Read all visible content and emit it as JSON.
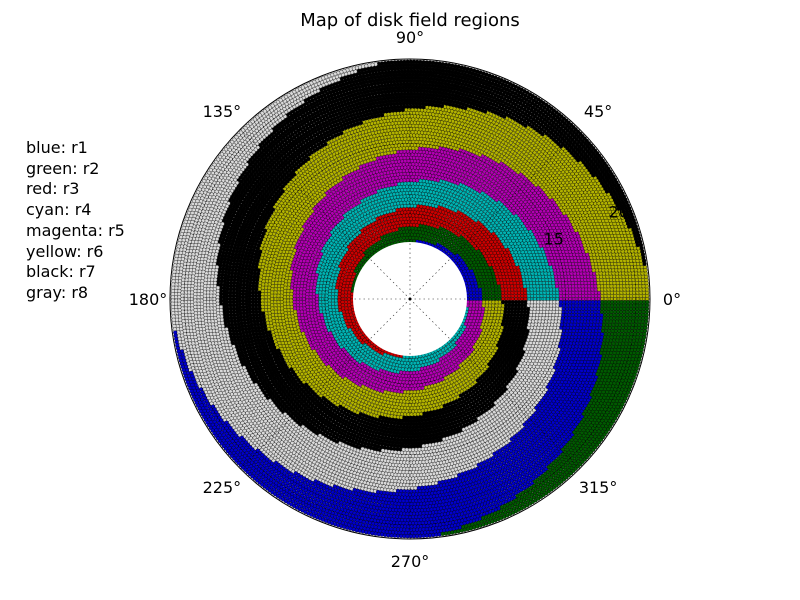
{
  "chart_data": {
    "type": "polar-scatter",
    "title": "Map of disk field regions",
    "angle_ticks": [
      "0°",
      "45°",
      "90°",
      "135°",
      "180°",
      "225°",
      "270°",
      "315°"
    ],
    "radial_ticks": [
      "15",
      "20"
    ],
    "radial_range": [
      8,
      21
    ],
    "arm_winding": "logarithmic spiral, radius increasing clockwise, ~2 turns",
    "grid": true,
    "legend_placement": "left",
    "legend": [
      {
        "label": "blue: r1",
        "region": "r1",
        "color": "#0000cc"
      },
      {
        "label": "green: r2",
        "region": "r2",
        "color": "#005a00"
      },
      {
        "label": "red: r3",
        "region": "r3",
        "color": "#cc0000"
      },
      {
        "label": "cyan: r4",
        "region": "r4",
        "color": "#00b3b3"
      },
      {
        "label": "magenta: r5",
        "region": "r5",
        "color": "#b300b3"
      },
      {
        "label": "yellow: r6",
        "region": "r6",
        "color": "#b3b300"
      },
      {
        "label": "black: r7",
        "region": "r7",
        "color": "#000000"
      },
      {
        "label": "gray: r8",
        "region": "r8",
        "color": "#d9d9d9"
      }
    ]
  }
}
